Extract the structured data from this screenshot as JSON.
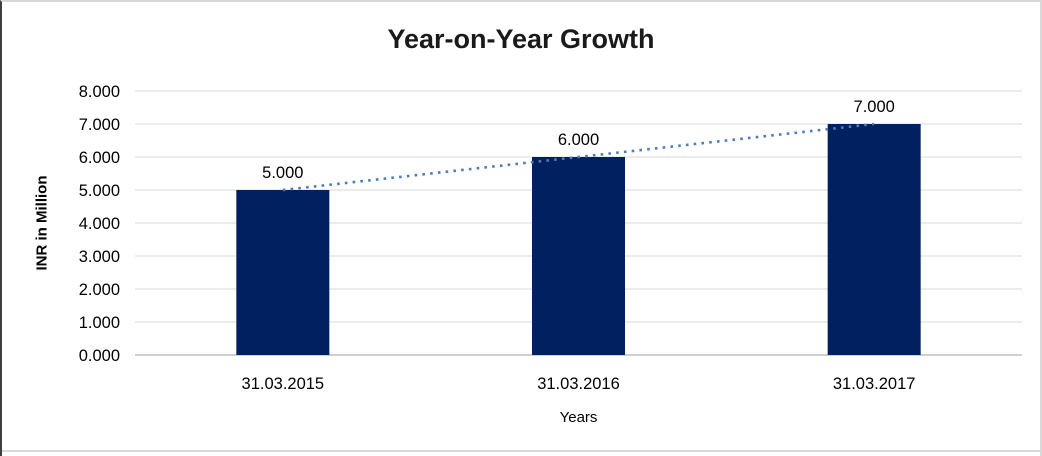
{
  "chart_data": {
    "type": "bar",
    "title": "Year-on-Year Growth",
    "categories": [
      "31.03.2015",
      "31.03.2016",
      "31.03.2017"
    ],
    "values": [
      5,
      6,
      7
    ],
    "value_labels": [
      "5.000",
      "6.000",
      "7.000"
    ],
    "xlabel": "Years",
    "ylabel": "INR in Million",
    "ylim": [
      0,
      8
    ],
    "ytick_step": 1,
    "ytick_labels": [
      "0.000",
      "1.000",
      "2.000",
      "3.000",
      "4.000",
      "5.000",
      "6.000",
      "7.000",
      "8.000"
    ],
    "grid": true,
    "legend": "none",
    "bar_color": "#002060",
    "trendline": {
      "type": "linear",
      "style": "dotted",
      "color": "#4a7ebb"
    },
    "gridline_color": "#d9d9d9",
    "axis_line_color": "#bfbfbf",
    "text_color": "#000000"
  }
}
